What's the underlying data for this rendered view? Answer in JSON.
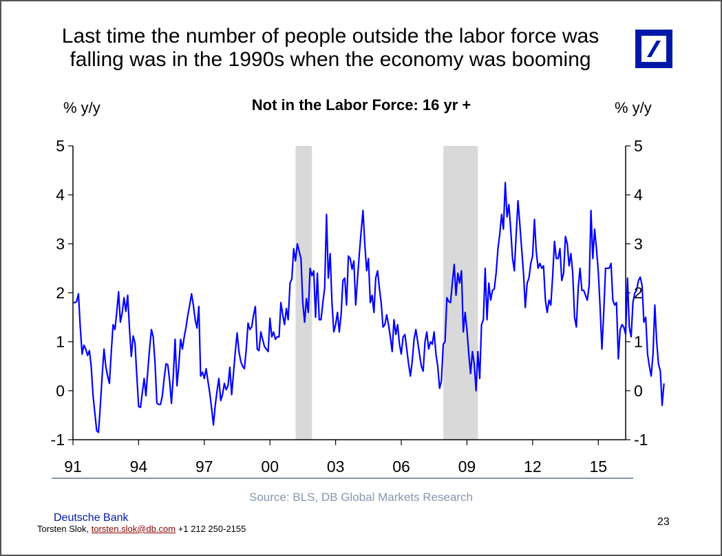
{
  "slide": {
    "title_line1": "Last time the number of people outside the labor force was",
    "title_line2": "falling was in the 1990s when the economy was booming",
    "logo": "deutsche-bank-logo",
    "source": "Source: BLS, DB Global Markets Research",
    "brand": "Deutsche Bank",
    "author_name": "Torsten Slok, ",
    "author_email": "torsten.slok@db.com",
    "author_phone": " +1 212 250-2155",
    "page_number": "23"
  },
  "colors": {
    "line": "#0000ff",
    "recession": "#d9d9d9",
    "brand": "#0018a8",
    "source": "#8497b0"
  },
  "chart_data": {
    "type": "line",
    "title": "Not in the Labor Force: 16 yr +",
    "ylabel_left": "% y/y",
    "ylabel_right": "% y/y",
    "xlabel": "",
    "ylim": [
      -1,
      5
    ],
    "yticks": [
      -1,
      0,
      1,
      2,
      3,
      4,
      5
    ],
    "ytick_labels": [
      "-1",
      "0",
      "1",
      "2",
      "3",
      "4",
      "5"
    ],
    "xlim": [
      1991.0,
      2016.25
    ],
    "xticks": [
      1991,
      1994,
      1997,
      2000,
      2003,
      2006,
      2009,
      2012,
      2015
    ],
    "xtick_labels": [
      "91",
      "94",
      "97",
      "00",
      "03",
      "06",
      "09",
      "12",
      "15"
    ],
    "grid": false,
    "recessions": [
      [
        2001.17,
        2001.92
      ],
      [
        2007.92,
        2009.5
      ]
    ],
    "series": [
      {
        "name": "Not in the Labor Force: 16 yr + (% y/y)",
        "start": 1991.0,
        "frequency": "monthly",
        "values": [
          1.8,
          1.8,
          1.82,
          1.98,
          1.3,
          0.75,
          0.93,
          0.85,
          0.72,
          0.82,
          0.5,
          -0.1,
          -0.45,
          -0.82,
          -0.85,
          -0.3,
          0.3,
          0.85,
          0.5,
          0.3,
          0.15,
          0.8,
          1.35,
          1.25,
          1.6,
          2.02,
          1.4,
          1.6,
          1.9,
          1.62,
          1.95,
          1.25,
          0.7,
          1.12,
          0.98,
          0.3,
          -0.32,
          -0.34,
          -0.05,
          0.25,
          -0.1,
          0.4,
          0.85,
          1.25,
          1.1,
          0.55,
          -0.25,
          -0.28,
          -0.28,
          -0.1,
          0.25,
          0.55,
          0.53,
          0.2,
          -0.26,
          0.3,
          1.05,
          0.1,
          0.5,
          1.05,
          0.85,
          1.1,
          1.3,
          1.55,
          1.75,
          1.98,
          1.75,
          1.45,
          1.28,
          1.72,
          0.3,
          0.38,
          0.25,
          0.45,
          0.2,
          -0.05,
          -0.35,
          -0.7,
          -0.3,
          0.0,
          0.25,
          -0.2,
          -0.08,
          0.15,
          0.02,
          0.1,
          0.48,
          -0.08,
          0.35,
          0.8,
          1.18,
          0.8,
          0.6,
          0.5,
          0.45,
          0.85,
          1.38,
          1.25,
          1.3,
          1.55,
          1.72,
          0.85,
          0.82,
          1.2,
          1.05,
          0.9,
          0.85,
          0.8,
          1.48,
          1.1,
          1.2,
          1.05,
          1.1,
          1.1,
          1.8,
          1.55,
          1.35,
          1.68,
          1.45,
          2.2,
          2.28,
          2.9,
          2.65,
          3.0,
          2.85,
          2.7,
          1.8,
          1.4,
          1.88,
          1.6,
          2.5,
          2.35,
          2.45,
          1.5,
          2.4,
          1.45,
          1.45,
          1.8,
          2.1,
          3.6,
          2.3,
          2.8,
          1.8,
          1.2,
          1.35,
          1.6,
          1.2,
          1.55,
          2.25,
          2.3,
          1.75,
          2.75,
          2.7,
          2.48,
          2.65,
          1.75,
          2.28,
          2.8,
          3.25,
          3.68,
          3.0,
          2.45,
          2.7,
          1.8,
          1.95,
          1.6,
          2.3,
          2.45,
          2.1,
          1.78,
          1.3,
          1.35,
          1.55,
          1.35,
          1.1,
          0.8,
          1.45,
          1.15,
          1.35,
          0.95,
          0.75,
          1.1,
          1.15,
          0.85,
          0.55,
          0.3,
          0.6,
          1.05,
          1.25,
          1.0,
          0.75,
          0.5,
          0.4,
          1.0,
          1.2,
          0.85,
          1.0,
          0.95,
          1.2,
          0.75,
          0.5,
          0.05,
          0.2,
          0.95,
          1.0,
          1.9,
          1.82,
          1.8,
          2.2,
          2.58,
          1.95,
          2.4,
          2.2,
          2.45,
          1.2,
          1.6,
          1.25,
          0.75,
          0.35,
          0.8,
          0.55,
          0.0,
          0.8,
          0.25,
          1.35,
          1.45,
          2.5,
          1.45,
          2.2,
          1.85,
          2.05,
          2.08,
          2.4,
          2.9,
          3.2,
          3.6,
          3.3,
          4.25,
          3.55,
          3.8,
          3.3,
          2.7,
          2.45,
          3.2,
          3.88,
          3.4,
          2.9,
          2.4,
          1.7,
          2.2,
          2.3,
          2.6,
          2.75,
          3.5,
          2.85,
          2.5,
          2.6,
          2.5,
          2.55,
          1.85,
          1.6,
          1.85,
          1.75,
          2.35,
          3.05,
          2.7,
          2.7,
          2.9,
          2.25,
          2.4,
          3.15,
          3.0,
          2.55,
          2.8,
          2.4,
          1.5,
          1.3,
          2.1,
          2.5,
          2.05,
          2.05,
          1.95,
          1.85,
          2.15,
          3.68,
          2.7,
          3.3,
          2.9,
          2.45,
          1.7,
          0.85,
          1.6,
          2.5,
          2.5,
          2.5,
          2.6,
          1.85,
          1.75,
          1.8,
          0.65,
          1.25,
          1.35,
          1.3,
          1.15,
          2.3,
          1.3,
          1.1,
          1.8,
          2.0,
          2.05,
          2.25,
          2.32,
          2.15,
          1.4,
          1.5,
          0.75,
          0.5,
          0.3,
          0.75,
          1.75,
          1.0,
          0.55,
          0.4,
          -0.3,
          0.15
        ]
      }
    ]
  }
}
